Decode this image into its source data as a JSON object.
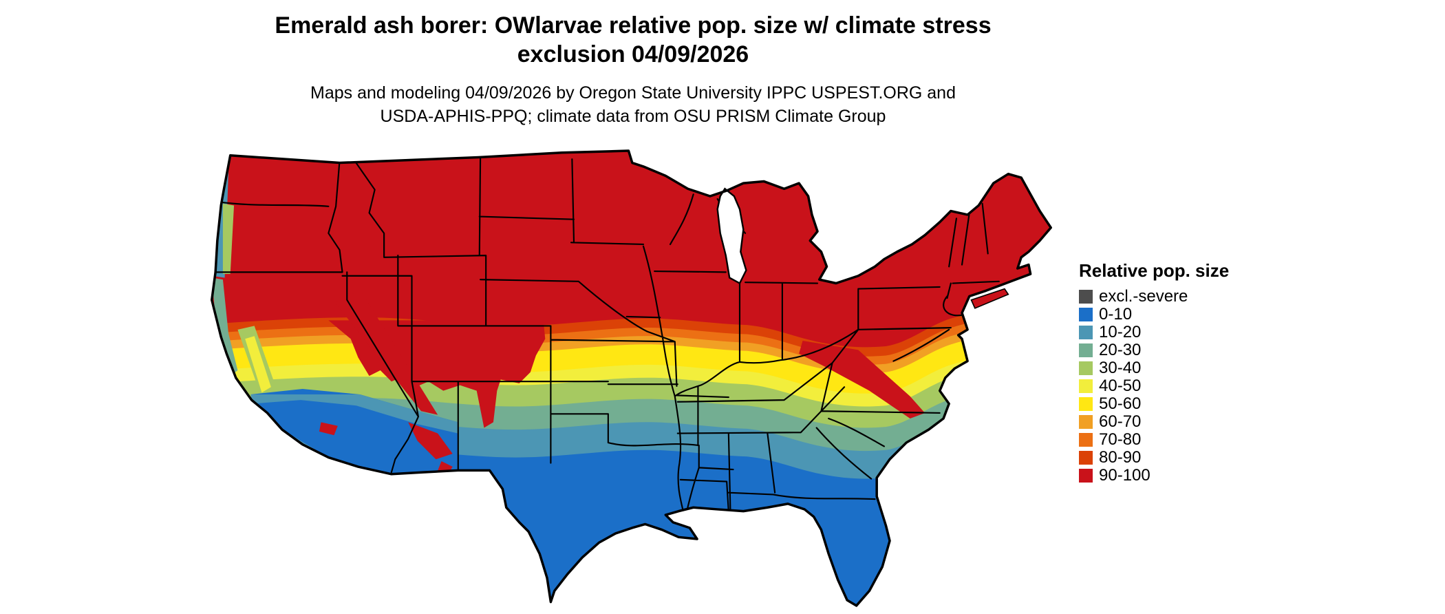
{
  "header": {
    "title_line1": "Emerald ash borer: OWlarvae relative pop. size w/ climate stress",
    "title_line2": "exclusion 04/09/2026",
    "subtitle_line1": "Maps and modeling 04/09/2026 by Oregon State University IPPC USPEST.ORG and",
    "subtitle_line2": "USDA-APHIS-PPQ; climate data from OSU PRISM Climate Group"
  },
  "legend": {
    "title": "Relative pop. size",
    "items": [
      {
        "label": "excl.-severe",
        "color": "#4D4D4D"
      },
      {
        "label": "0-10",
        "color": "#1B6FC8"
      },
      {
        "label": "10-20",
        "color": "#4C96B4"
      },
      {
        "label": "20-30",
        "color": "#73AE92"
      },
      {
        "label": "30-40",
        "color": "#A6C961"
      },
      {
        "label": "40-50",
        "color": "#F2EE3C"
      },
      {
        "label": "50-60",
        "color": "#FFE713"
      },
      {
        "label": "60-70",
        "color": "#F1A024"
      },
      {
        "label": "70-80",
        "color": "#EC7014"
      },
      {
        "label": "80-90",
        "color": "#DB4207"
      },
      {
        "label": "90-100",
        "color": "#C9121A"
      }
    ]
  }
}
